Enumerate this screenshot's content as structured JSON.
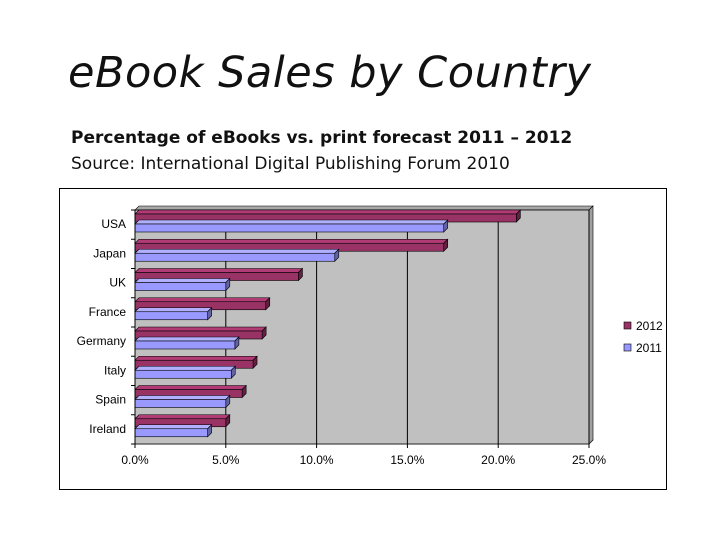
{
  "page": {
    "title": "eBook Sales by Country",
    "subtitle": "Percentage of eBooks vs. print forecast 2011 – 2012",
    "source": "Source: International Digital Publishing Forum 2010"
  },
  "chart_data": {
    "type": "bar",
    "orientation": "horizontal",
    "categories": [
      "USA",
      "Japan",
      "UK",
      "France",
      "Germany",
      "Italy",
      "Spain",
      "Ireland"
    ],
    "series": [
      {
        "name": "2012",
        "color": "#993366",
        "values": [
          21.0,
          17.0,
          9.0,
          7.2,
          7.0,
          6.5,
          5.9,
          5.0
        ]
      },
      {
        "name": "2011",
        "color": "#9999FF",
        "values": [
          17.0,
          11.0,
          5.0,
          4.0,
          5.5,
          5.3,
          5.0,
          4.0
        ]
      }
    ],
    "xlim": [
      0,
      25
    ],
    "xticks": [
      "0.0%",
      "5.0%",
      "10.0%",
      "15.0%",
      "20.0%",
      "25.0%"
    ],
    "xlabel": "",
    "ylabel": "",
    "grid": true,
    "legend_position": "right",
    "plot_background": "#C0C0C0"
  }
}
